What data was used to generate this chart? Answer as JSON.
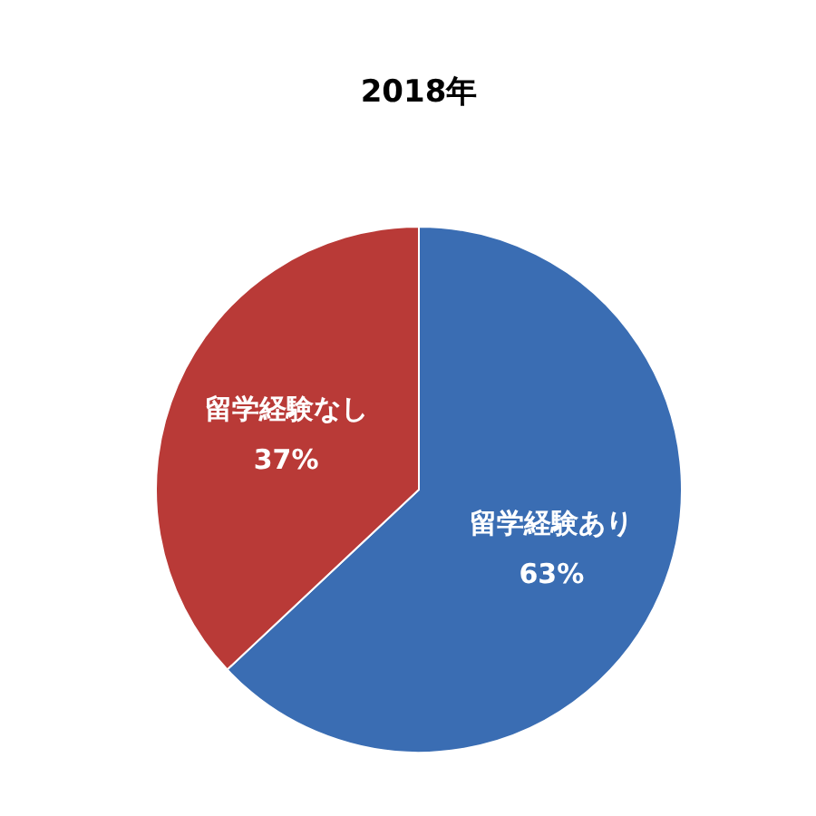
{
  "chart_data": {
    "type": "pie",
    "title": "2018年",
    "categories": [
      "留学経験あり",
      "留学経験なし"
    ],
    "values": [
      63,
      37
    ],
    "colors": [
      "#3a6db3",
      "#b93a37"
    ],
    "value_labels": [
      "63%",
      "37%"
    ]
  }
}
